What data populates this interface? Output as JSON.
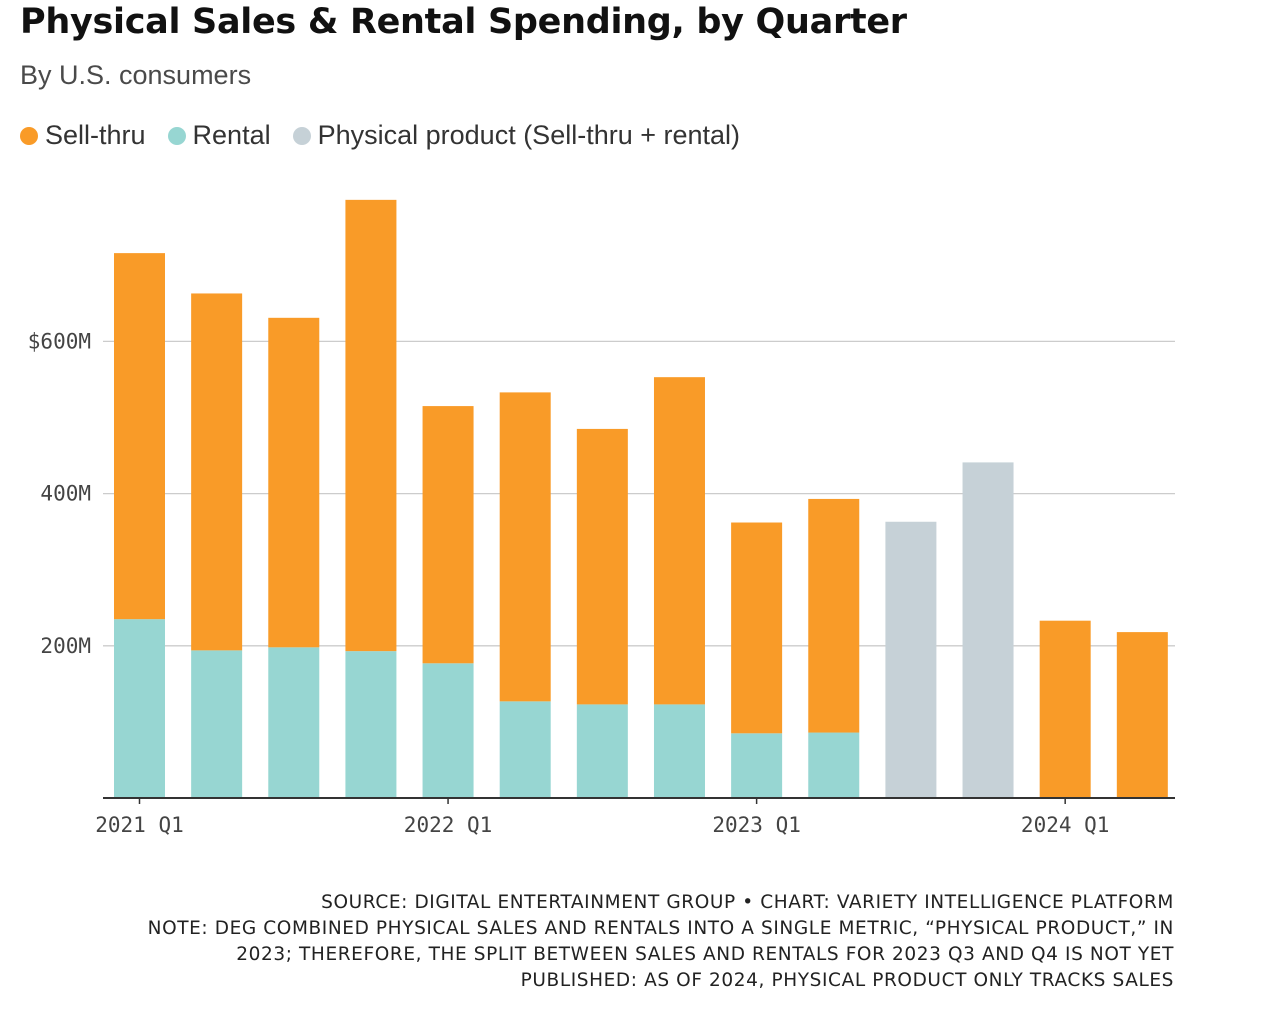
{
  "title": "Physical Sales & Rental Spending, by Quarter",
  "subtitle": "By U.S. consumers",
  "colors": {
    "sell_thru": "#f99b28",
    "rental": "#97d6d2",
    "physical": "#c6d1d7",
    "grid": "#cccccc",
    "axis": "#333333"
  },
  "legend": [
    {
      "label": "Sell-thru",
      "color": "#f99b28"
    },
    {
      "label": "Rental",
      "color": "#97d6d2"
    },
    {
      "label": "Physical product (Sell-thru + rental)",
      "color": "#c6d1d7"
    }
  ],
  "chart_data": {
    "type": "bar",
    "stacked": true,
    "categories": [
      "2021 Q1",
      "2021 Q2",
      "2021 Q3",
      "2021 Q4",
      "2022 Q1",
      "2022 Q2",
      "2022 Q3",
      "2022 Q4",
      "2023 Q1",
      "2023 Q2",
      "2023 Q3",
      "2023 Q4",
      "2024 Q1",
      "2024 Q2"
    ],
    "series": [
      {
        "name": "Rental",
        "values": [
          235,
          194,
          198,
          193,
          177,
          127,
          123,
          123,
          85,
          86,
          null,
          null,
          null,
          null
        ]
      },
      {
        "name": "Sell-thru",
        "values": [
          481,
          469,
          433,
          593,
          338,
          406,
          362,
          430,
          277,
          307,
          null,
          null,
          233,
          218
        ]
      },
      {
        "name": "Physical product (Sell-thru + rental)",
        "values": [
          null,
          null,
          null,
          null,
          null,
          null,
          null,
          null,
          null,
          null,
          363,
          441,
          null,
          null
        ]
      }
    ],
    "x_tick_labels": [
      "2021 Q1",
      "2022 Q1",
      "2023 Q1",
      "2024 Q1"
    ],
    "y_ticks": [
      {
        "value": 200,
        "label": "200M"
      },
      {
        "value": 400,
        "label": "400M"
      },
      {
        "value": 600,
        "label": "$600M"
      }
    ],
    "ylim": [
      0,
      800
    ],
    "grid": true,
    "legend_position": "top-left"
  },
  "footer": {
    "source": "SOURCE: DIGITAL ENTERTAINMENT GROUP • CHART: VARIETY INTELLIGENCE PLATFORM",
    "note_lines": [
      "NOTE: DEG COMBINED PHYSICAL SALES AND RENTALS INTO A SINGLE METRIC, “PHYSICAL PRODUCT,” IN",
      "2023; THEREFORE, THE SPLIT BETWEEN SALES AND RENTALS FOR 2023 Q3 AND Q4 IS NOT YET",
      "PUBLISHED: AS OF 2024, PHYSICAL PRODUCT ONLY TRACKS SALES"
    ]
  }
}
